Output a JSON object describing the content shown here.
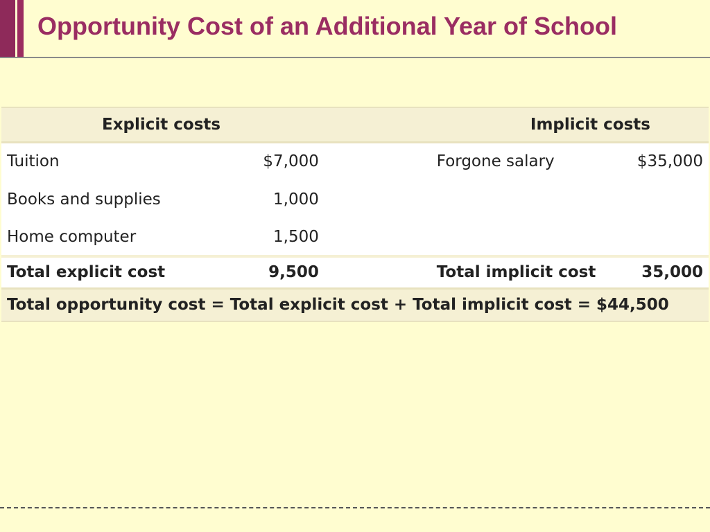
{
  "slide": {
    "title": "Opportunity Cost of an Additional Year of School",
    "accent_color": "#9b2c5f",
    "background_color": "#fffdd0"
  },
  "table": {
    "explicit_header": "Explicit costs",
    "implicit_header": "Implicit costs",
    "rows": [
      {
        "explicit_label": "Tuition",
        "explicit_value": "$7,000",
        "implicit_label": "Forgone salary",
        "implicit_value": "$35,000"
      },
      {
        "explicit_label": "Books and supplies",
        "explicit_value": "1,000",
        "implicit_label": "",
        "implicit_value": ""
      },
      {
        "explicit_label": "Home computer",
        "explicit_value": "1,500",
        "implicit_label": "",
        "implicit_value": ""
      }
    ],
    "totals": {
      "explicit_label": "Total explicit cost",
      "explicit_value": "9,500",
      "implicit_label": "Total implicit cost",
      "implicit_value": "35,000"
    },
    "opportunity_total": "Total opportunity cost = Total explicit cost + Total implicit cost = $44,500"
  }
}
